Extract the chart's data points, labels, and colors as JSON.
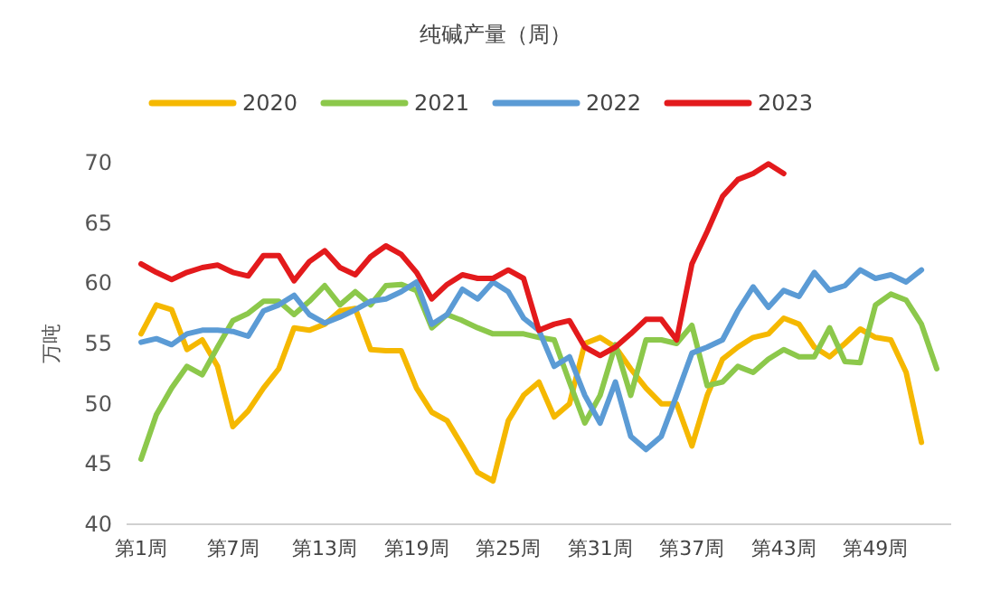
{
  "chart_data": {
    "type": "line",
    "title": "纯碱产量（周）",
    "ylabel": "万吨",
    "categories": [
      "第1周",
      null,
      null,
      null,
      null,
      null,
      "第7周",
      null,
      null,
      null,
      null,
      null,
      "第13周",
      null,
      null,
      null,
      null,
      null,
      "第19周",
      null,
      null,
      null,
      null,
      null,
      "第25周",
      null,
      null,
      null,
      null,
      null,
      "第31周",
      null,
      null,
      null,
      null,
      null,
      "第37周",
      null,
      null,
      null,
      null,
      null,
      "第43周",
      null,
      null,
      null,
      null,
      null,
      "第49周",
      null,
      null,
      null,
      null
    ],
    "ylim": [
      40,
      70
    ],
    "yticks": [
      40,
      45,
      50,
      55,
      60,
      65,
      70
    ],
    "grid": false,
    "legend": "top",
    "marker": "none",
    "line_style": "solid",
    "series": [
      {
        "name": "2020",
        "color": "#f5b800",
        "values": [
          55.8,
          58.2,
          57.8,
          54.5,
          55.3,
          53.1,
          48.1,
          49.4,
          51.3,
          52.9,
          56.3,
          56.1,
          56.6,
          57.7,
          57.9,
          54.5,
          54.4,
          54.4,
          51.3,
          49.3,
          48.6,
          46.5,
          44.3,
          43.6,
          48.6,
          50.7,
          51.8,
          48.9,
          50.0,
          55.0,
          55.5,
          54.7,
          52.9,
          51.3,
          50.0,
          50.0,
          46.5,
          50.7,
          53.7,
          54.7,
          55.5,
          55.8,
          57.1,
          56.6,
          54.7,
          53.9,
          55.0,
          56.2,
          55.5,
          55.3,
          52.6,
          46.8,
          null
        ]
      },
      {
        "name": "2021",
        "color": "#8cc84b",
        "values": [
          45.4,
          49.1,
          51.3,
          53.1,
          52.4,
          54.7,
          56.9,
          57.5,
          58.5,
          58.5,
          57.4,
          58.5,
          59.8,
          58.2,
          59.3,
          58.2,
          59.8,
          59.9,
          59.4,
          56.3,
          57.4,
          56.9,
          56.3,
          55.8,
          55.8,
          55.8,
          55.5,
          55.3,
          51.8,
          48.4,
          50.7,
          54.9,
          50.7,
          55.3,
          55.3,
          55.0,
          56.5,
          51.5,
          51.8,
          53.1,
          52.6,
          53.7,
          54.5,
          53.9,
          53.9,
          56.3,
          53.5,
          53.4,
          58.2,
          59.1,
          58.6,
          56.6,
          52.9
        ]
      },
      {
        "name": "2022",
        "color": "#5b9bd5",
        "values": [
          55.1,
          55.4,
          54.9,
          55.8,
          56.1,
          56.1,
          56.0,
          55.6,
          57.7,
          58.2,
          59.0,
          57.4,
          56.7,
          57.2,
          57.8,
          58.5,
          58.7,
          59.3,
          60.1,
          56.6,
          57.4,
          59.5,
          58.7,
          60.1,
          59.3,
          57.1,
          56.1,
          53.1,
          53.9,
          50.7,
          48.4,
          51.8,
          47.3,
          46.2,
          47.3,
          50.7,
          54.2,
          54.7,
          55.3,
          57.7,
          59.7,
          58.0,
          59.4,
          58.9,
          60.9,
          59.4,
          59.8,
          61.1,
          60.4,
          60.7,
          60.1,
          61.1,
          null
        ]
      },
      {
        "name": "2023",
        "color": "#e31a1c",
        "values": [
          61.6,
          60.9,
          60.3,
          60.9,
          61.3,
          61.5,
          60.9,
          60.6,
          62.3,
          62.3,
          60.2,
          61.8,
          62.7,
          61.3,
          60.7,
          62.2,
          63.1,
          62.4,
          60.9,
          58.7,
          59.9,
          60.7,
          60.4,
          60.4,
          61.1,
          60.4,
          56.1,
          56.6,
          56.9,
          54.7,
          54.0,
          54.7,
          55.8,
          57.0,
          57.0,
          55.3,
          61.6,
          64.3,
          67.2,
          68.6,
          69.1,
          69.9,
          69.1,
          null,
          null,
          null,
          null,
          null,
          null,
          null,
          null,
          null,
          null
        ]
      }
    ]
  }
}
